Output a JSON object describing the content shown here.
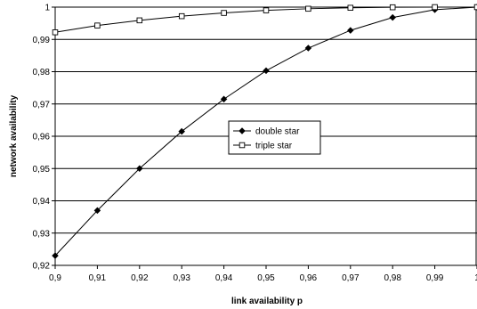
{
  "chart_data": {
    "type": "line",
    "title": "",
    "xlabel": "link availability p",
    "ylabel": "network availability",
    "x": [
      0.9,
      0.91,
      0.92,
      0.93,
      0.94,
      0.95,
      0.96,
      0.97,
      0.98,
      0.99,
      1.0
    ],
    "x_tick_labels": [
      "0,9",
      "0,91",
      "0,92",
      "0,93",
      "0,94",
      "0,95",
      "0,96",
      "0,97",
      "0,98",
      "0,99",
      "1"
    ],
    "xlim": [
      0.9,
      1.0
    ],
    "ylim": [
      0.92,
      1.0
    ],
    "y_ticks": [
      0.92,
      0.93,
      0.94,
      0.95,
      0.96,
      0.97,
      0.98,
      0.99,
      1.0
    ],
    "y_tick_labels": [
      "0,92",
      "0,93",
      "0,94",
      "0,95",
      "0,96",
      "0,97",
      "0,98",
      "0,99",
      "1"
    ],
    "grid": "horizontal",
    "legend_position": "center",
    "series": [
      {
        "name": "double star",
        "marker": "filled-diamond",
        "values": [
          0.923,
          0.937,
          0.95,
          0.9615,
          0.9715,
          0.9803,
          0.9873,
          0.9928,
          0.9968,
          0.9992,
          1.0
        ]
      },
      {
        "name": "triple star",
        "marker": "open-square",
        "values": [
          0.9922,
          0.9943,
          0.9959,
          0.9972,
          0.9982,
          0.999,
          0.9995,
          0.9998,
          0.99995,
          1.0,
          1.0
        ]
      }
    ]
  }
}
